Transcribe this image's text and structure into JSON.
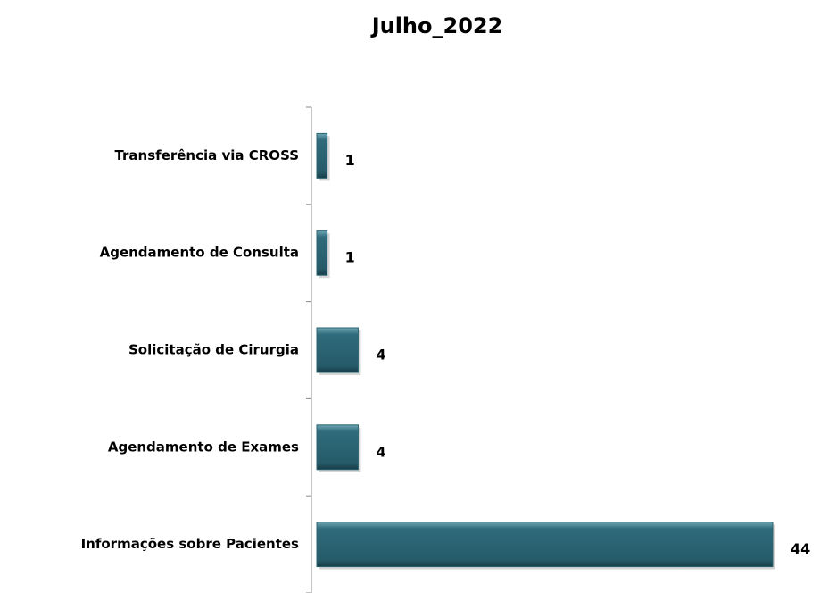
{
  "chart_data": {
    "type": "hbar",
    "title": "Julho_2022",
    "categories": [
      "Transferência via CROSS",
      "Agendamento de Consulta",
      "Solicitação de Cirurgia",
      "Agendamento de Exames",
      "Informações sobre Pacientes"
    ],
    "values": [
      1,
      1,
      4,
      4,
      44
    ],
    "color": "#2b6473",
    "xlim": [
      0,
      44
    ]
  }
}
